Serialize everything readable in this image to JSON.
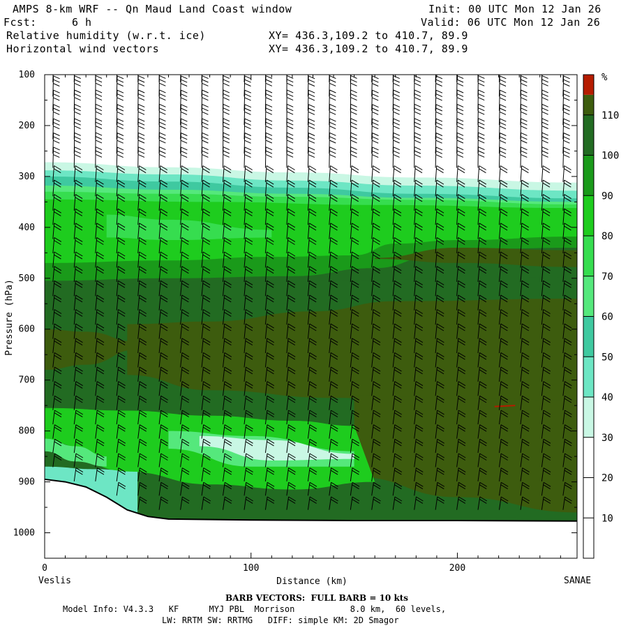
{
  "header": {
    "title": "AMPS 8-km WRF -- Qn Maud Land Coast window",
    "init": "Init: 00 UTC Mon 12 Jan 26",
    "fcst_label": "Fcst:",
    "fcst_value": "6 h",
    "valid": "Valid: 06 UTC Mon 12 Jan 26",
    "field1": "Relative humidity (w.r.t. ice)",
    "xy1": "XY= 436.3,109.2 to 410.7, 89.9",
    "field2": "Horizontal wind vectors",
    "xy2": "XY= 436.3,109.2 to 410.7, 89.9"
  },
  "footer": {
    "left_location": "Veslis",
    "right_location": "SANAE",
    "barb_info": "BARB VECTORS:  FULL BARB = 10 kts",
    "model_line1": "Model Info: V4.3.3   KF      MYJ PBL  Morrison           8.0 km,  60 levels,",
    "model_line2": "LW: RRTM SW: RRTMG   DIFF: simple KM: 2D Smagor"
  },
  "colors": {
    "c10": "#ffffff",
    "c20": "#ffffff",
    "c30": "#c9f7e4",
    "c40": "#6de6c4",
    "c50": "#3fc9a0",
    "c60": "#55e87c",
    "c70": "#36dd4f",
    "c80": "#1ecc1e",
    "c90": "#1a9a1a",
    "c100": "#226b22",
    "c110": "#3d5c0e",
    "over": "#b51c00",
    "terrain_line": "#000000",
    "barb": "#000000"
  },
  "chart_data": {
    "type": "heatmap",
    "title": "Relative humidity (w.r.t. ice)",
    "overlay": "Horizontal wind vectors",
    "xlabel": "Distance (km)",
    "ylabel": "Pressure (hPa)",
    "xlim": [
      0,
      258
    ],
    "ylim": [
      1050,
      100
    ],
    "y_scale": "linear, inverted",
    "x_ticks": [
      0,
      100,
      200
    ],
    "y_ticks": [
      100,
      200,
      300,
      400,
      500,
      600,
      700,
      800,
      900,
      1000
    ],
    "colorbar": {
      "unit": "%",
      "levels": [
        10,
        20,
        30,
        40,
        50,
        60,
        70,
        80,
        90,
        100,
        110
      ],
      "range": [
        0,
        120
      ]
    },
    "layers_pressure": [
      {
        "from": 100,
        "to": 280,
        "rh_class": "<30"
      },
      {
        "from": 280,
        "to": 330,
        "rh_class": "30-60"
      },
      {
        "from": 330,
        "to": 500,
        "rh_class": "60-90"
      },
      {
        "from": 500,
        "to": 940,
        "rh_class": "90-110"
      }
    ],
    "surface_pressure": [
      {
        "km": 0,
        "hPa": 895
      },
      {
        "km": 10,
        "hPa": 900
      },
      {
        "km": 20,
        "hPa": 910
      },
      {
        "km": 30,
        "hPa": 930
      },
      {
        "km": 40,
        "hPa": 955
      },
      {
        "km": 50,
        "hPa": 968
      },
      {
        "km": 60,
        "hPa": 973
      },
      {
        "km": 100,
        "hPa": 975
      },
      {
        "km": 150,
        "hPa": 976
      },
      {
        "km": 200,
        "hPa": 976
      },
      {
        "km": 258,
        "hPa": 977
      }
    ],
    "barb_full_kts": 10
  }
}
